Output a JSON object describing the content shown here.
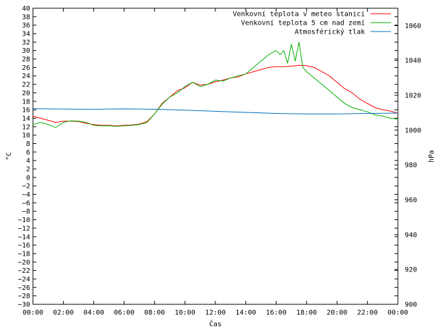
{
  "chart_data": {
    "type": "line",
    "xlabel": "Čas",
    "ylabel_left": "°C",
    "ylabel_right": "hPa",
    "x_ticks": [
      "00:00",
      "02:00",
      "04:00",
      "06:00",
      "08:00",
      "10:00",
      "12:00",
      "14:00",
      "16:00",
      "18:00",
      "20:00",
      "22:00",
      "00:00"
    ],
    "x_range_hours": [
      0,
      24
    ],
    "ylim_left": [
      -30,
      40
    ],
    "ylim_right": [
      900,
      1070
    ],
    "y_ticks_left": [
      "40",
      "38",
      "36",
      "34",
      "32",
      "30",
      "28",
      "26",
      "24",
      "22",
      "20",
      "18",
      "16",
      "14",
      "12",
      "10",
      "8",
      "6",
      "4",
      "2",
      "0",
      "-2",
      "-4",
      "-6",
      "-8",
      "-10",
      "-12",
      "-14",
      "-16",
      "-18",
      "-20",
      "-22",
      "-24",
      "-26",
      "-28",
      "-30"
    ],
    "y_ticks_right": [
      "1060",
      "1040",
      "1020",
      "1000",
      "980",
      "960",
      "940",
      "920",
      "900"
    ],
    "grid": false,
    "legend_position": "top-right",
    "series": [
      {
        "name": "Venkovní teplota v meteo stanici",
        "axis": "left",
        "color": "#ff0000",
        "x": [
          0,
          0.5,
          1,
          1.5,
          2,
          2.5,
          3,
          3.5,
          4,
          4.5,
          5,
          5.5,
          6,
          6.5,
          7,
          7.5,
          8,
          8.5,
          9,
          9.5,
          10,
          10.5,
          11,
          11.5,
          12,
          12.5,
          13,
          13.5,
          14,
          14.5,
          15,
          15.5,
          16,
          16.5,
          17,
          17.5,
          18,
          18.5,
          19,
          19.5,
          20,
          20.5,
          21,
          21.5,
          22,
          22.5,
          23,
          23.5,
          24
        ],
        "y": [
          14.5,
          14,
          13.5,
          13,
          13.3,
          13.3,
          13.2,
          12.8,
          12.5,
          12.3,
          12.3,
          12.2,
          12.3,
          12.4,
          12.6,
          13.2,
          15,
          17.5,
          19,
          20.5,
          21.2,
          22.5,
          21.8,
          22,
          22.6,
          23,
          23.5,
          23.8,
          24.5,
          25,
          25.5,
          26,
          26.2,
          26.2,
          26.3,
          26.5,
          26.4,
          26,
          25,
          24,
          22.5,
          21,
          20,
          18.5,
          17.5,
          16.5,
          16,
          15.7,
          15.2
        ]
      },
      {
        "name": "Venkovní teplota 5 cm nad zemí",
        "axis": "left",
        "color": "#00b000",
        "x": [
          0,
          0.5,
          1,
          1.5,
          2,
          2.5,
          3,
          3.5,
          4,
          4.5,
          5,
          5.5,
          6,
          6.5,
          7,
          7.5,
          8,
          8.5,
          9,
          9.5,
          10,
          10.5,
          11,
          11.5,
          12,
          12.5,
          13,
          13.5,
          14,
          14.5,
          15,
          15.5,
          16,
          16.25,
          16.5,
          16.75,
          17,
          17.25,
          17.5,
          17.75,
          18,
          18.5,
          19,
          19.5,
          20,
          20.5,
          21,
          21.5,
          22,
          22.5,
          23,
          23.5,
          24
        ],
        "y": [
          12.5,
          13,
          12.5,
          11.8,
          13,
          13.4,
          13.3,
          13,
          12.3,
          12.2,
          12.2,
          12.1,
          12.2,
          12.3,
          12.5,
          13,
          15,
          17.3,
          19,
          20,
          21.5,
          22.5,
          21.5,
          22,
          23,
          22.8,
          23.5,
          24,
          24.5,
          26,
          27.5,
          29,
          30,
          29,
          30,
          27,
          31.5,
          27.5,
          32,
          26,
          25,
          23.5,
          22,
          20.5,
          19,
          17.5,
          16.5,
          16,
          15.5,
          14.8,
          14.5,
          14,
          13.8
        ]
      },
      {
        "name": "Atmosférický tlak",
        "axis": "right",
        "color": "#0070c0",
        "x": [
          0,
          2,
          4,
          6,
          8,
          10,
          12,
          14,
          16,
          18,
          20,
          22,
          24
        ],
        "y": [
          1012.3,
          1012.1,
          1012.0,
          1012.2,
          1012.0,
          1011.5,
          1010.8,
          1010.2,
          1009.6,
          1009.3,
          1009.3,
          1009.6,
          1009.8
        ]
      }
    ]
  }
}
